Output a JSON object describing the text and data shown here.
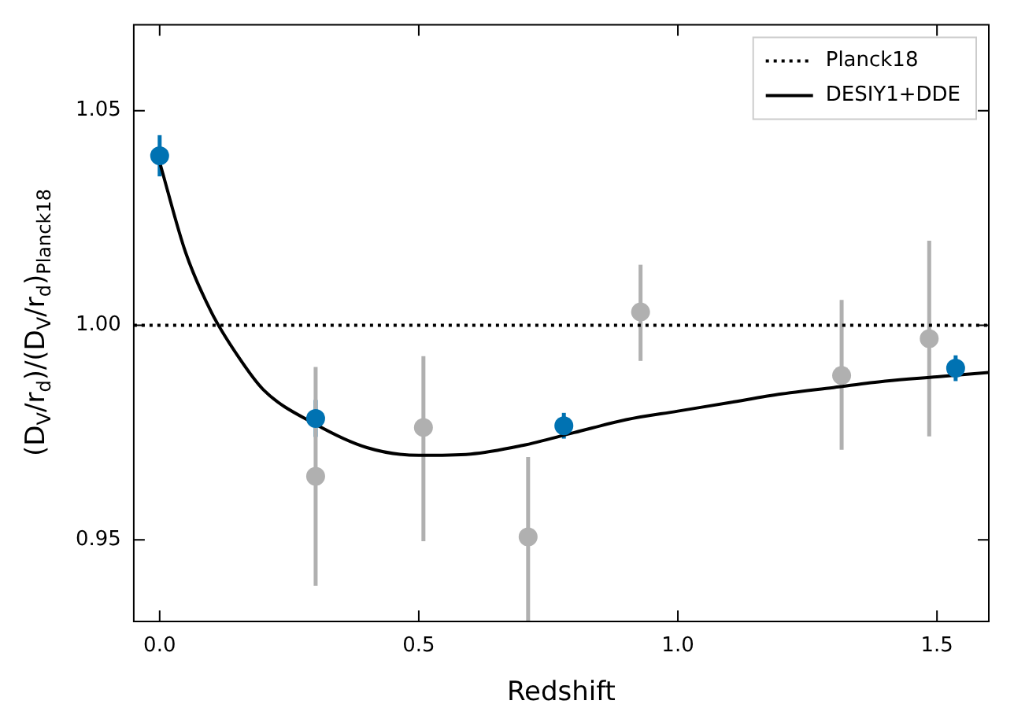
{
  "chart_data": {
    "type": "scatter",
    "xlabel": "Redshift",
    "ylabel": "(D$_{V}$/r$_{d}$)/(D$_{V}$/r$_{d}$)$_{Planck18}$",
    "xlim": [
      -0.05,
      1.6
    ],
    "xticks": [
      {
        "value": 0,
        "label": "0.0"
      },
      0.5,
      {
        "value": 1,
        "label": "1.0"
      },
      1.5
    ],
    "ylim": [
      0.931,
      1.07
    ],
    "yticks": [
      0.95,
      {
        "value": 1,
        "label": "1.00"
      },
      1.05
    ],
    "grid": false,
    "legend": "top right",
    "marker": "circle",
    "ref_lines": [
      {
        "axis": "y",
        "value": 1,
        "label": "Planck18",
        "color": "#000000",
        "line_style": "dotted"
      }
    ],
    "series": [
      {
        "color": "#b0b0b0",
        "x": [
          0.301,
          0.509,
          0.711,
          0.928,
          1.316,
          1.485
        ],
        "values": [
          0.9648,
          0.9762,
          0.9507,
          1.0031,
          0.9883,
          0.9969
        ],
        "errors": [
          [
            0.9393,
            0.9903
          ],
          [
            0.9497,
            0.9928
          ],
          [
            0.931,
            0.9693
          ],
          [
            0.9917,
            1.0141
          ],
          [
            0.971,
            1.0059
          ],
          [
            0.9741,
            1.0197
          ]
        ]
      },
      {
        "type": "line",
        "name": "DESIY1+DDE",
        "color": "#000000",
        "line_style": "solid",
        "marker": "none",
        "x": [
          0,
          0.05,
          0.1,
          0.15,
          0.2,
          0.3,
          0.4,
          0.5,
          0.6,
          0.7,
          0.8,
          0.9,
          1.0,
          1.1,
          1.2,
          1.3,
          1.4,
          1.5,
          1.6
        ],
        "values": [
          1.038,
          1.017,
          1.003,
          0.993,
          0.985,
          0.977,
          0.9715,
          0.9697,
          0.97,
          0.972,
          0.975,
          0.978,
          0.98,
          0.982,
          0.984,
          0.9855,
          0.987,
          0.988,
          0.989
        ]
      },
      {
        "color": "#0072b2",
        "x": [
          0,
          0.301,
          0.78,
          1.536
        ],
        "values": [
          1.0395,
          0.9783,
          0.9766,
          0.99
        ],
        "errors": [
          0.0048,
          0.0043,
          0.003,
          0.003
        ]
      }
    ]
  }
}
